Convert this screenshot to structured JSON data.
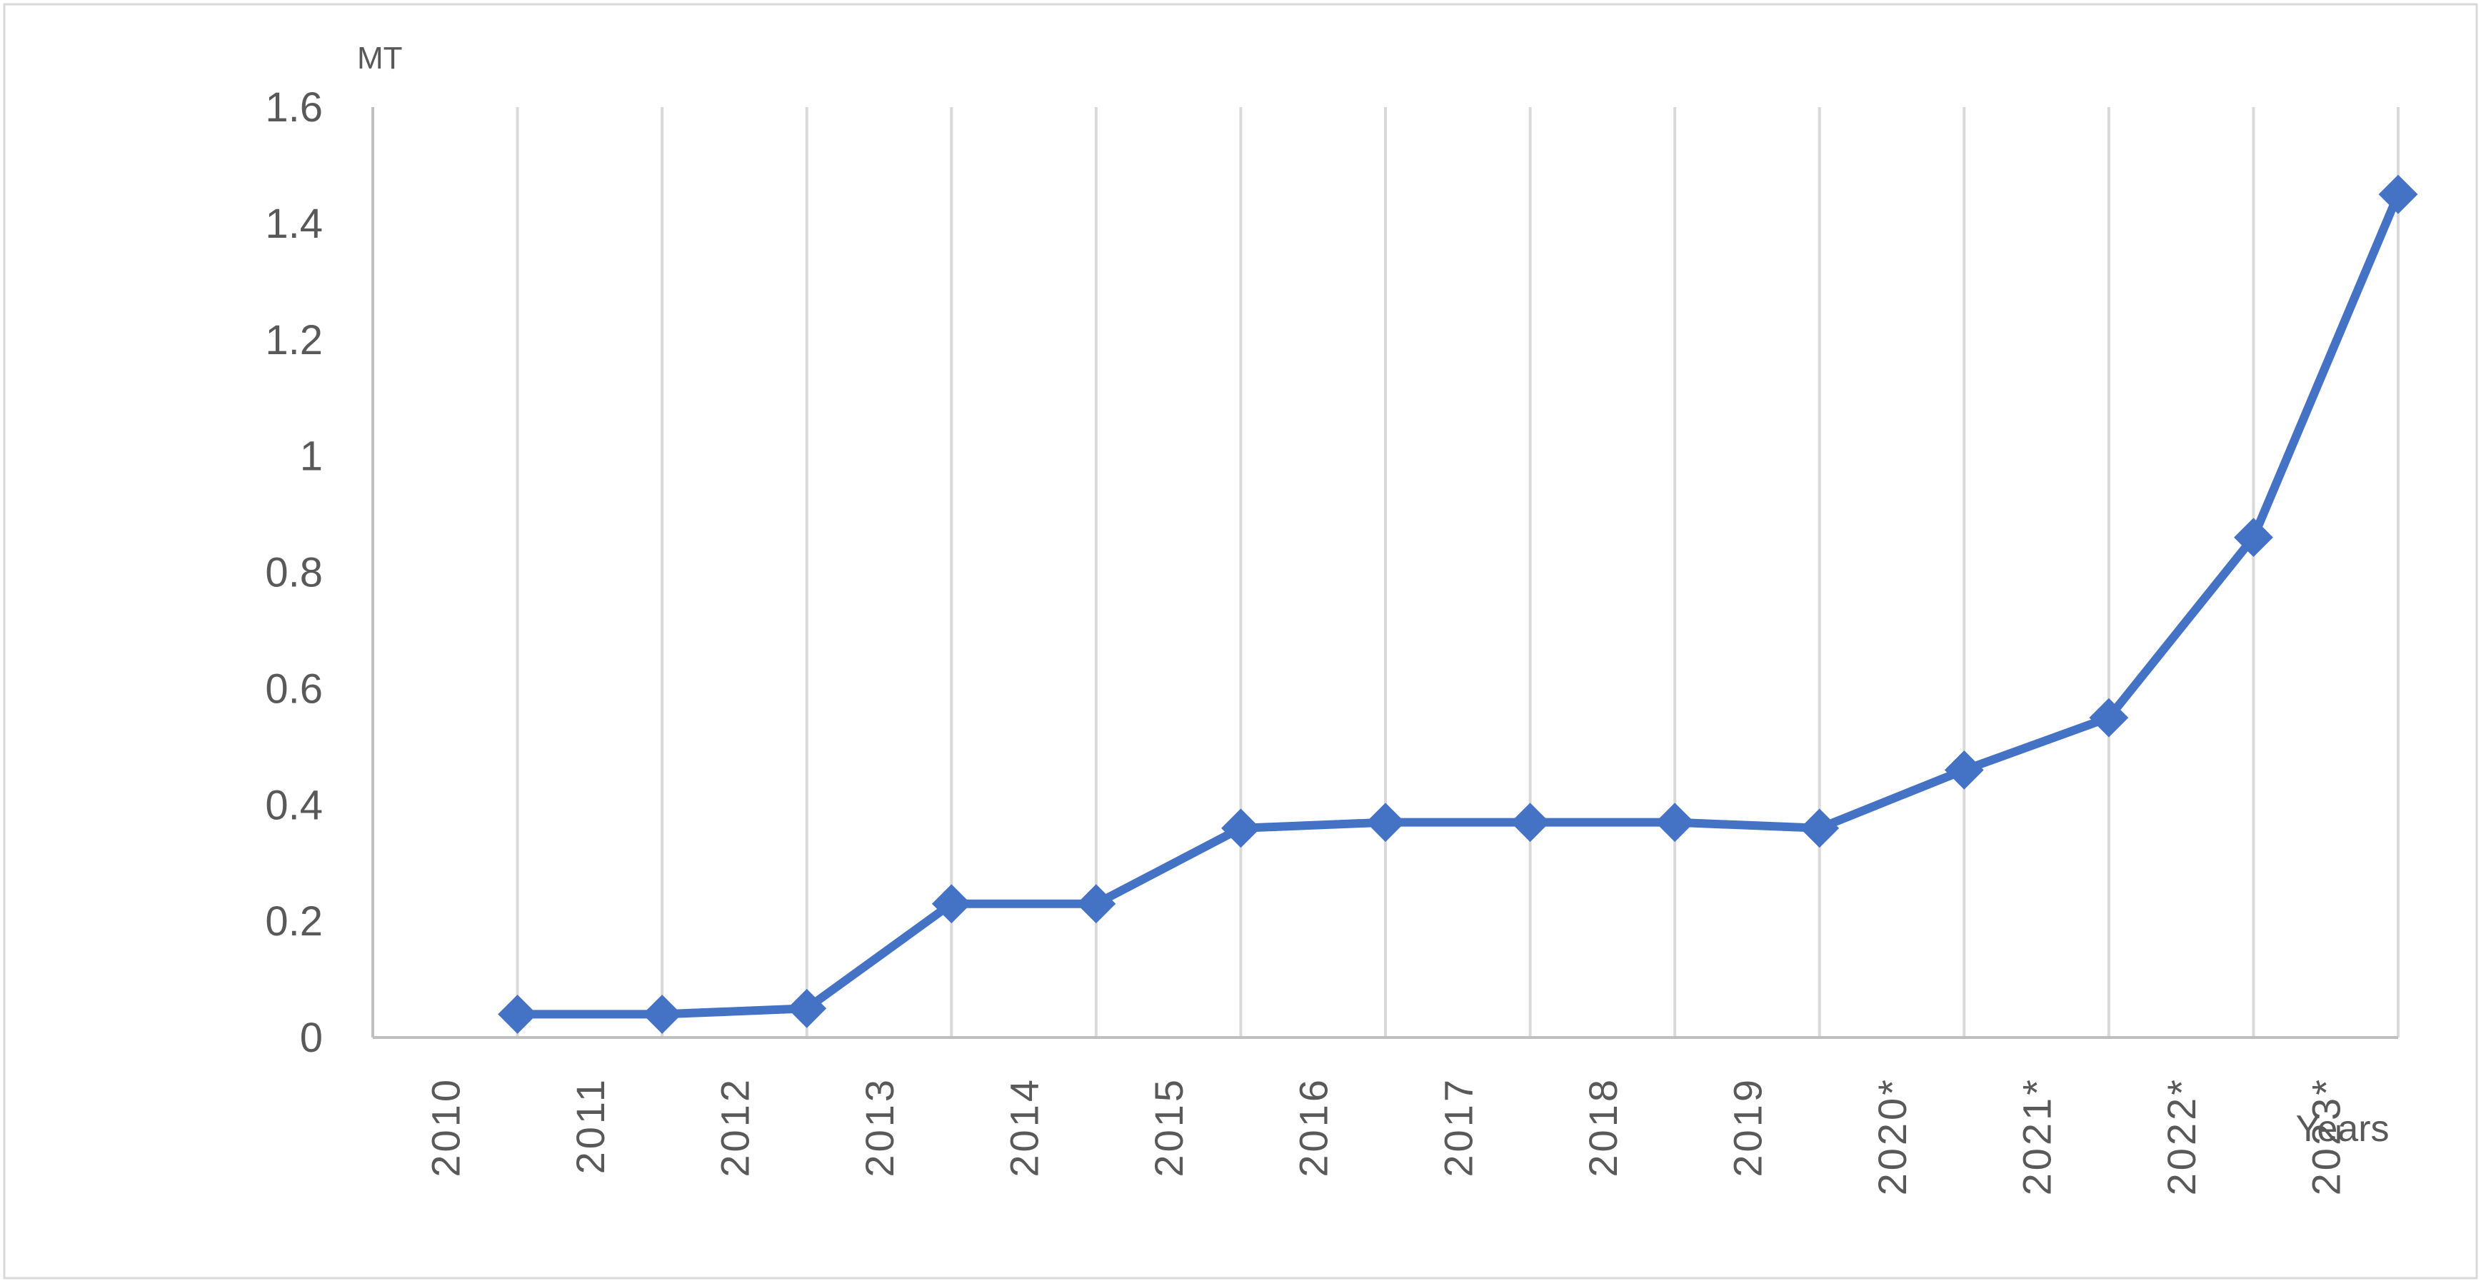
{
  "chart_data": {
    "type": "line",
    "title": "",
    "ylabel": "MT",
    "xlabel": "Years",
    "ylim": [
      0,
      1.6
    ],
    "yticks": [
      "0",
      "0.2",
      "0.4",
      "0.6",
      "0.8",
      "1",
      "1.2",
      "1.4",
      "1.6"
    ],
    "categories": [
      "2010",
      "2011",
      "2012",
      "2013",
      "2014",
      "2015",
      "2016",
      "2017",
      "2018",
      "2019",
      "2020*",
      "2021*",
      "2022*",
      "2023*"
    ],
    "series": [
      {
        "values": [
          0.04,
          0.04,
          0.05,
          0.23,
          0.23,
          0.36,
          0.37,
          0.37,
          0.37,
          0.36,
          0.46,
          0.55,
          0.86,
          1.45
        ],
        "color": "#4472C4",
        "marker": "diamond"
      }
    ],
    "grid": "vertical",
    "legend": "none"
  }
}
